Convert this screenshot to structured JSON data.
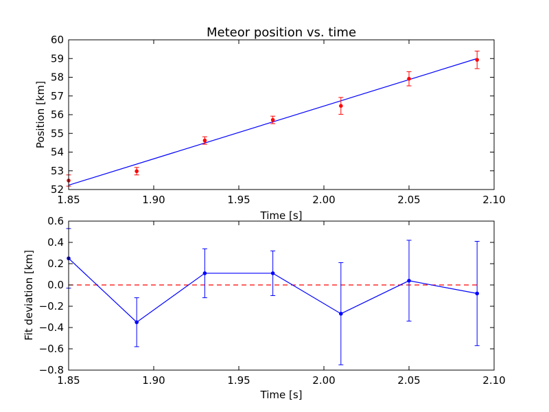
{
  "chart_data": [
    {
      "type": "scatter",
      "title": "Meteor position vs. time",
      "xlabel": "Time [s]",
      "ylabel": "Position [km]",
      "xlim": [
        1.85,
        2.1
      ],
      "ylim": [
        52,
        60
      ],
      "xticks": [
        "1.85",
        "1.90",
        "1.95",
        "2.00",
        "2.05",
        "2.10"
      ],
      "yticks": [
        "52",
        "53",
        "54",
        "55",
        "56",
        "57",
        "58",
        "59",
        "60"
      ],
      "grid": false,
      "points": {
        "color": "#ff0000",
        "x": [
          1.85,
          1.89,
          1.93,
          1.97,
          2.01,
          2.05,
          2.09
        ],
        "y": [
          52.48,
          52.98,
          54.62,
          55.72,
          56.47,
          57.92,
          58.93
        ],
        "yerr": [
          0.3,
          0.2,
          0.2,
          0.2,
          0.45,
          0.38,
          0.47
        ]
      },
      "fit_line": {
        "color": "#0000ff",
        "x": [
          1.85,
          2.09
        ],
        "y": [
          52.23,
          59.0
        ]
      }
    },
    {
      "type": "line",
      "title": "",
      "xlabel": "Time [s]",
      "ylabel": "Fit deviation [km]",
      "xlim": [
        1.85,
        2.1
      ],
      "ylim": [
        -0.8,
        0.6
      ],
      "xticks": [
        "1.85",
        "1.90",
        "1.95",
        "2.00",
        "2.05",
        "2.10"
      ],
      "yticks": [
        "−0.8",
        "−0.6",
        "−0.4",
        "−0.2",
        "0.0",
        "0.2",
        "0.4",
        "0.6"
      ],
      "grid": false,
      "series": {
        "color": "#0000ff",
        "x": [
          1.85,
          1.89,
          1.93,
          1.97,
          2.01,
          2.05,
          2.09
        ],
        "y": [
          0.25,
          -0.35,
          0.11,
          0.11,
          -0.27,
          0.04,
          -0.08
        ],
        "yerr": [
          0.28,
          0.23,
          0.23,
          0.21,
          0.48,
          0.38,
          0.49
        ]
      },
      "reference_line": {
        "color": "#ff0000",
        "style": "dashed",
        "y": 0
      }
    }
  ]
}
